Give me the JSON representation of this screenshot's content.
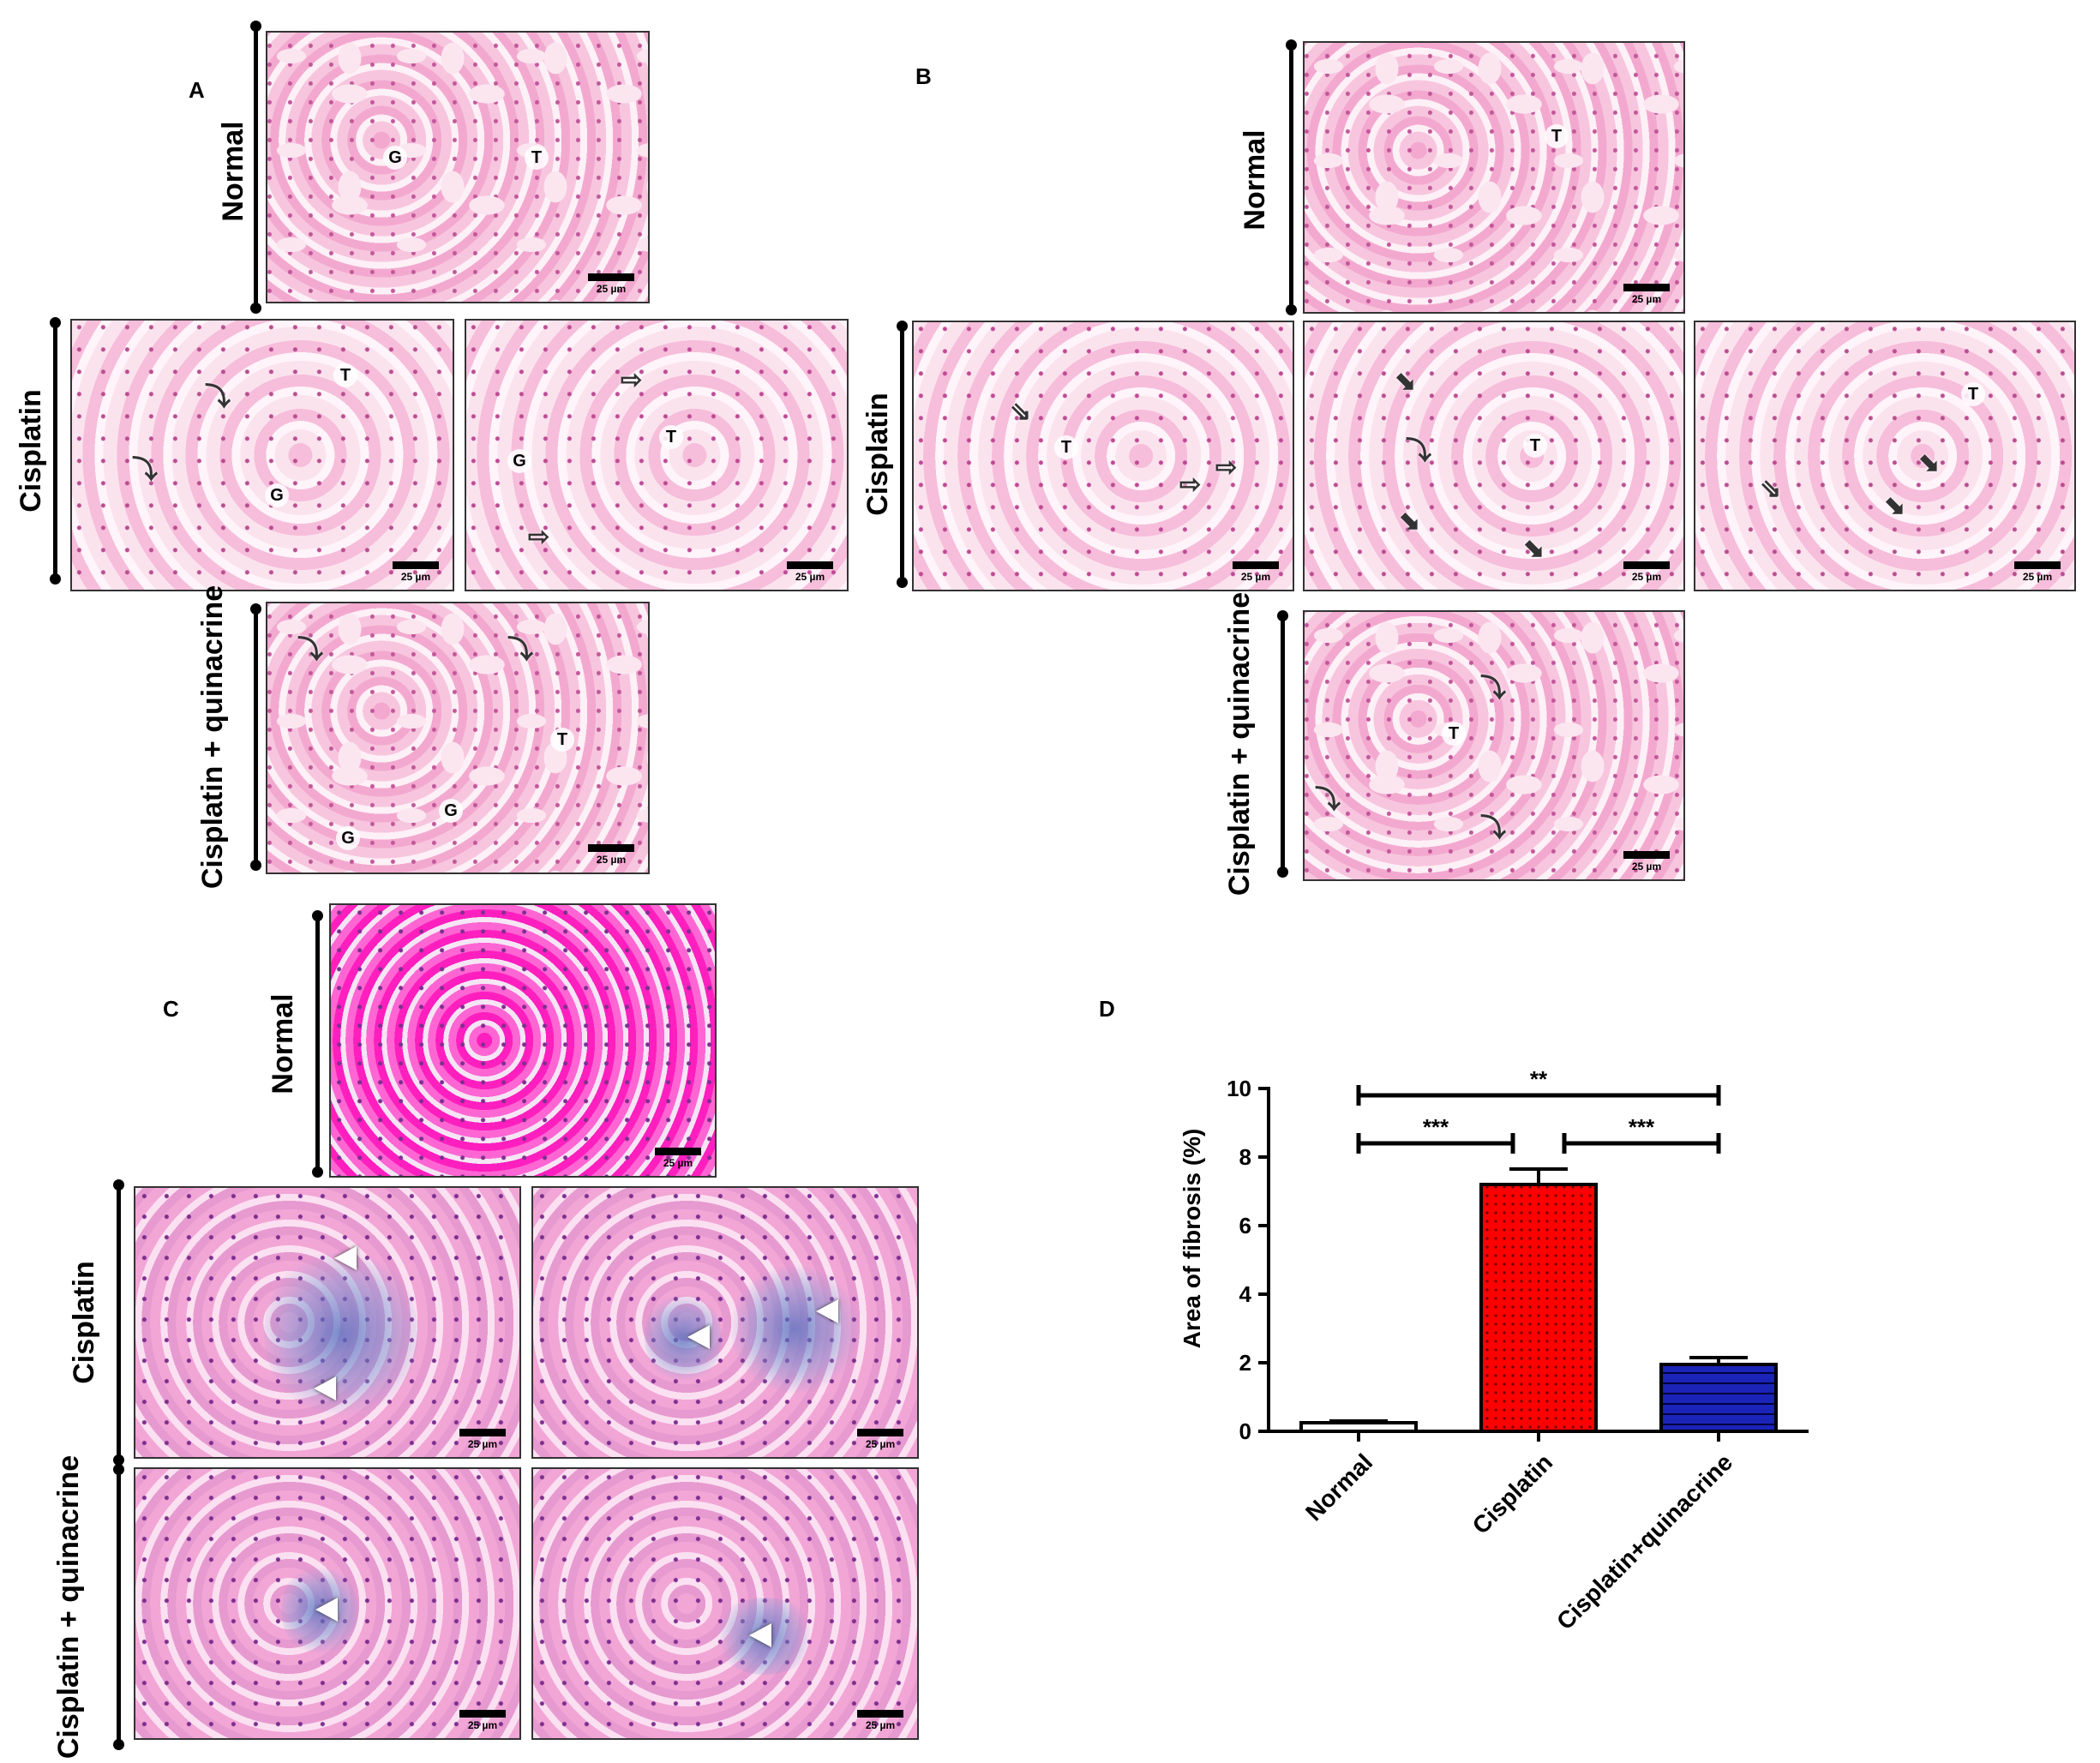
{
  "panel_letters": {
    "a": "A",
    "b": "B",
    "c": "C",
    "d": "D"
  },
  "groups": {
    "normal": "Normal",
    "cisplatin": "Cisplatin",
    "cis_quin": "Cisplatin + quinacrine"
  },
  "scale_bar": "25 µm",
  "markers": {
    "glomerulus": "G",
    "tubule": "T"
  },
  "icons": {
    "curved_arrow": "curved-arrow-icon",
    "arrow": "arrow-icon",
    "thick_arrow": "thick-arrow-icon",
    "arrowhead": "arrowhead-icon"
  },
  "colors": {
    "normal_bar": "#ffffff",
    "cisplatin_bar": "#ff0000",
    "cis_quin_bar": "#1a24b8",
    "he_stain": "#f3a9cf",
    "mt_stain": "#ff33c8",
    "fibrosis": "#5b79c9"
  },
  "chart_data": {
    "type": "bar",
    "ylabel": "Area of fibrosis (%)",
    "ylim": [
      0,
      10
    ],
    "yticks": [
      0,
      2,
      4,
      6,
      8,
      10
    ],
    "categories": [
      "Normal",
      "Cisplatin",
      "Cisplatin+quinacrine"
    ],
    "values": [
      0.25,
      7.2,
      1.95
    ],
    "errors": [
      0.05,
      0.45,
      0.2
    ],
    "bar_colors": [
      "#ffffff",
      "#ff0000",
      "#1a24b8"
    ],
    "bar_patterns": [
      "none",
      "dots",
      "horizontal-lines"
    ],
    "significance": [
      {
        "from": 0,
        "to": 2,
        "label": "**",
        "y": 9.8
      },
      {
        "from": 0,
        "to": 1,
        "label": "***",
        "y": 8.4
      },
      {
        "from": 1,
        "to": 2,
        "label": "***",
        "y": 8.4
      }
    ]
  }
}
